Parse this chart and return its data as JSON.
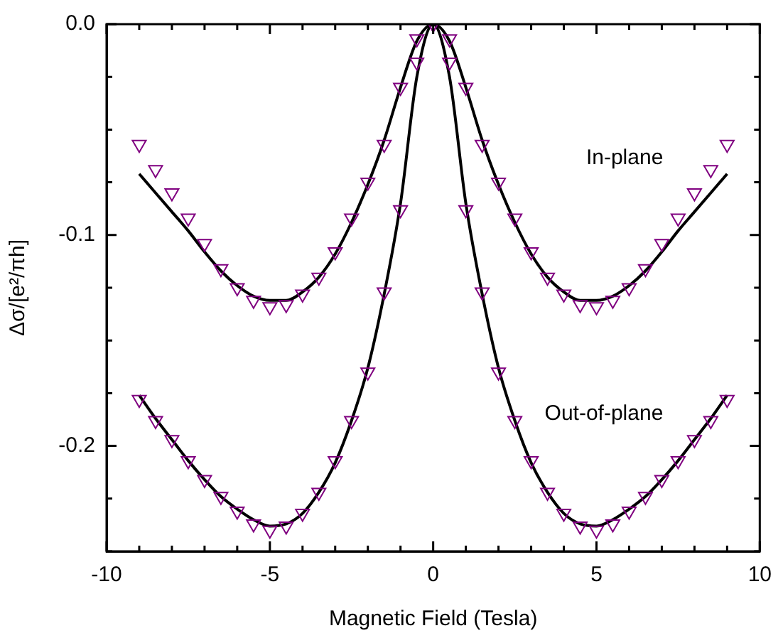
{
  "chart_data": {
    "type": "scatter",
    "xlabel": "Magnetic Field (Tesla)",
    "ylabel": "Δσ/[e²/πh]",
    "x": [
      -9,
      -8.5,
      -8,
      -7.5,
      -7,
      -6.5,
      -6,
      -5.5,
      -5,
      -4.5,
      -4,
      -3.5,
      -3,
      -2.5,
      -2,
      -1.5,
      -1,
      -0.5,
      0,
      0.5,
      1,
      1.5,
      2,
      2.5,
      3,
      3.5,
      4,
      4.5,
      5,
      5.5,
      6,
      6.5,
      7,
      7.5,
      8,
      8.5,
      9
    ],
    "series": [
      {
        "type": "scatter",
        "name": "In-plane",
        "color": "#800080",
        "values": [
          -0.057,
          -0.069,
          -0.08,
          -0.092,
          -0.104,
          -0.116,
          -0.125,
          -0.131,
          -0.134,
          -0.133,
          -0.128,
          -0.12,
          -0.108,
          -0.092,
          -0.075,
          -0.057,
          -0.03,
          -0.007,
          0,
          -0.007,
          -0.03,
          -0.057,
          -0.075,
          -0.092,
          -0.108,
          -0.12,
          -0.128,
          -0.133,
          -0.134,
          -0.131,
          -0.125,
          -0.116,
          -0.104,
          -0.092,
          -0.08,
          -0.069,
          -0.057
        ]
      },
      {
        "type": "scatter",
        "name": "Out-of-plane",
        "color": "#800080",
        "values": [
          -0.178,
          -0.188,
          -0.197,
          -0.207,
          -0.216,
          -0.224,
          -0.231,
          -0.237,
          -0.24,
          -0.238,
          -0.232,
          -0.222,
          -0.207,
          -0.188,
          -0.165,
          -0.127,
          -0.088,
          -0.018,
          0,
          -0.018,
          -0.088,
          -0.127,
          -0.165,
          -0.188,
          -0.207,
          -0.222,
          -0.232,
          -0.238,
          -0.24,
          -0.237,
          -0.231,
          -0.224,
          -0.216,
          -0.207,
          -0.197,
          -0.188,
          -0.178
        ]
      },
      {
        "type": "line",
        "marker": "none",
        "color": "#000000",
        "values": [
          -0.071,
          -0.08,
          -0.089,
          -0.098,
          -0.108,
          -0.117,
          -0.124,
          -0.129,
          -0.131,
          -0.131,
          -0.127,
          -0.12,
          -0.109,
          -0.094,
          -0.076,
          -0.055,
          -0.03,
          -0.008,
          0,
          -0.008,
          -0.03,
          -0.055,
          -0.076,
          -0.094,
          -0.109,
          -0.12,
          -0.127,
          -0.131,
          -0.131,
          -0.129,
          -0.124,
          -0.117,
          -0.108,
          -0.098,
          -0.089,
          -0.08,
          -0.071
        ]
      },
      {
        "type": "line",
        "marker": "none",
        "color": "#000000",
        "values": [
          -0.176,
          -0.187,
          -0.197,
          -0.207,
          -0.216,
          -0.224,
          -0.23,
          -0.235,
          -0.238,
          -0.237,
          -0.232,
          -0.222,
          -0.208,
          -0.188,
          -0.163,
          -0.128,
          -0.085,
          -0.025,
          0,
          -0.025,
          -0.085,
          -0.128,
          -0.163,
          -0.188,
          -0.208,
          -0.222,
          -0.232,
          -0.237,
          -0.238,
          -0.235,
          -0.23,
          -0.224,
          -0.216,
          -0.207,
          -0.197,
          -0.187,
          -0.176
        ]
      }
    ],
    "xlim": [
      -10,
      10
    ],
    "xticks": [
      -10,
      {
        "value": -9,
        "label": null
      },
      {
        "value": -8,
        "label": null
      },
      {
        "value": -7,
        "label": null
      },
      {
        "value": -6,
        "label": null
      },
      -5,
      {
        "value": -4,
        "label": null
      },
      {
        "value": -3,
        "label": null
      },
      {
        "value": -2,
        "label": null
      },
      {
        "value": -1,
        "label": null
      },
      0,
      {
        "value": 1,
        "label": null
      },
      {
        "value": 2,
        "label": null
      },
      {
        "value": 3,
        "label": null
      },
      {
        "value": 4,
        "label": null
      },
      5,
      {
        "value": 6,
        "label": null
      },
      {
        "value": 7,
        "label": null
      },
      {
        "value": 8,
        "label": null
      },
      {
        "value": 9,
        "label": null
      },
      10
    ],
    "ylim": [
      -0.25,
      0
    ],
    "yticks": [
      {
        "value": -0.25,
        "label": null
      },
      {
        "value": -0.225,
        "label": null
      },
      {
        "value": -0.2,
        "label": "-0.2"
      },
      {
        "value": -0.175,
        "label": null
      },
      {
        "value": -0.15,
        "label": null
      },
      {
        "value": -0.125,
        "label": null
      },
      {
        "value": -0.1,
        "label": "-0.1"
      },
      {
        "value": -0.075,
        "label": null
      },
      {
        "value": -0.05,
        "label": null
      },
      {
        "value": -0.025,
        "label": null
      },
      {
        "value": 0,
        "label": "0.0"
      }
    ],
    "marker": "triangle",
    "grid": false,
    "legend": false
  }
}
